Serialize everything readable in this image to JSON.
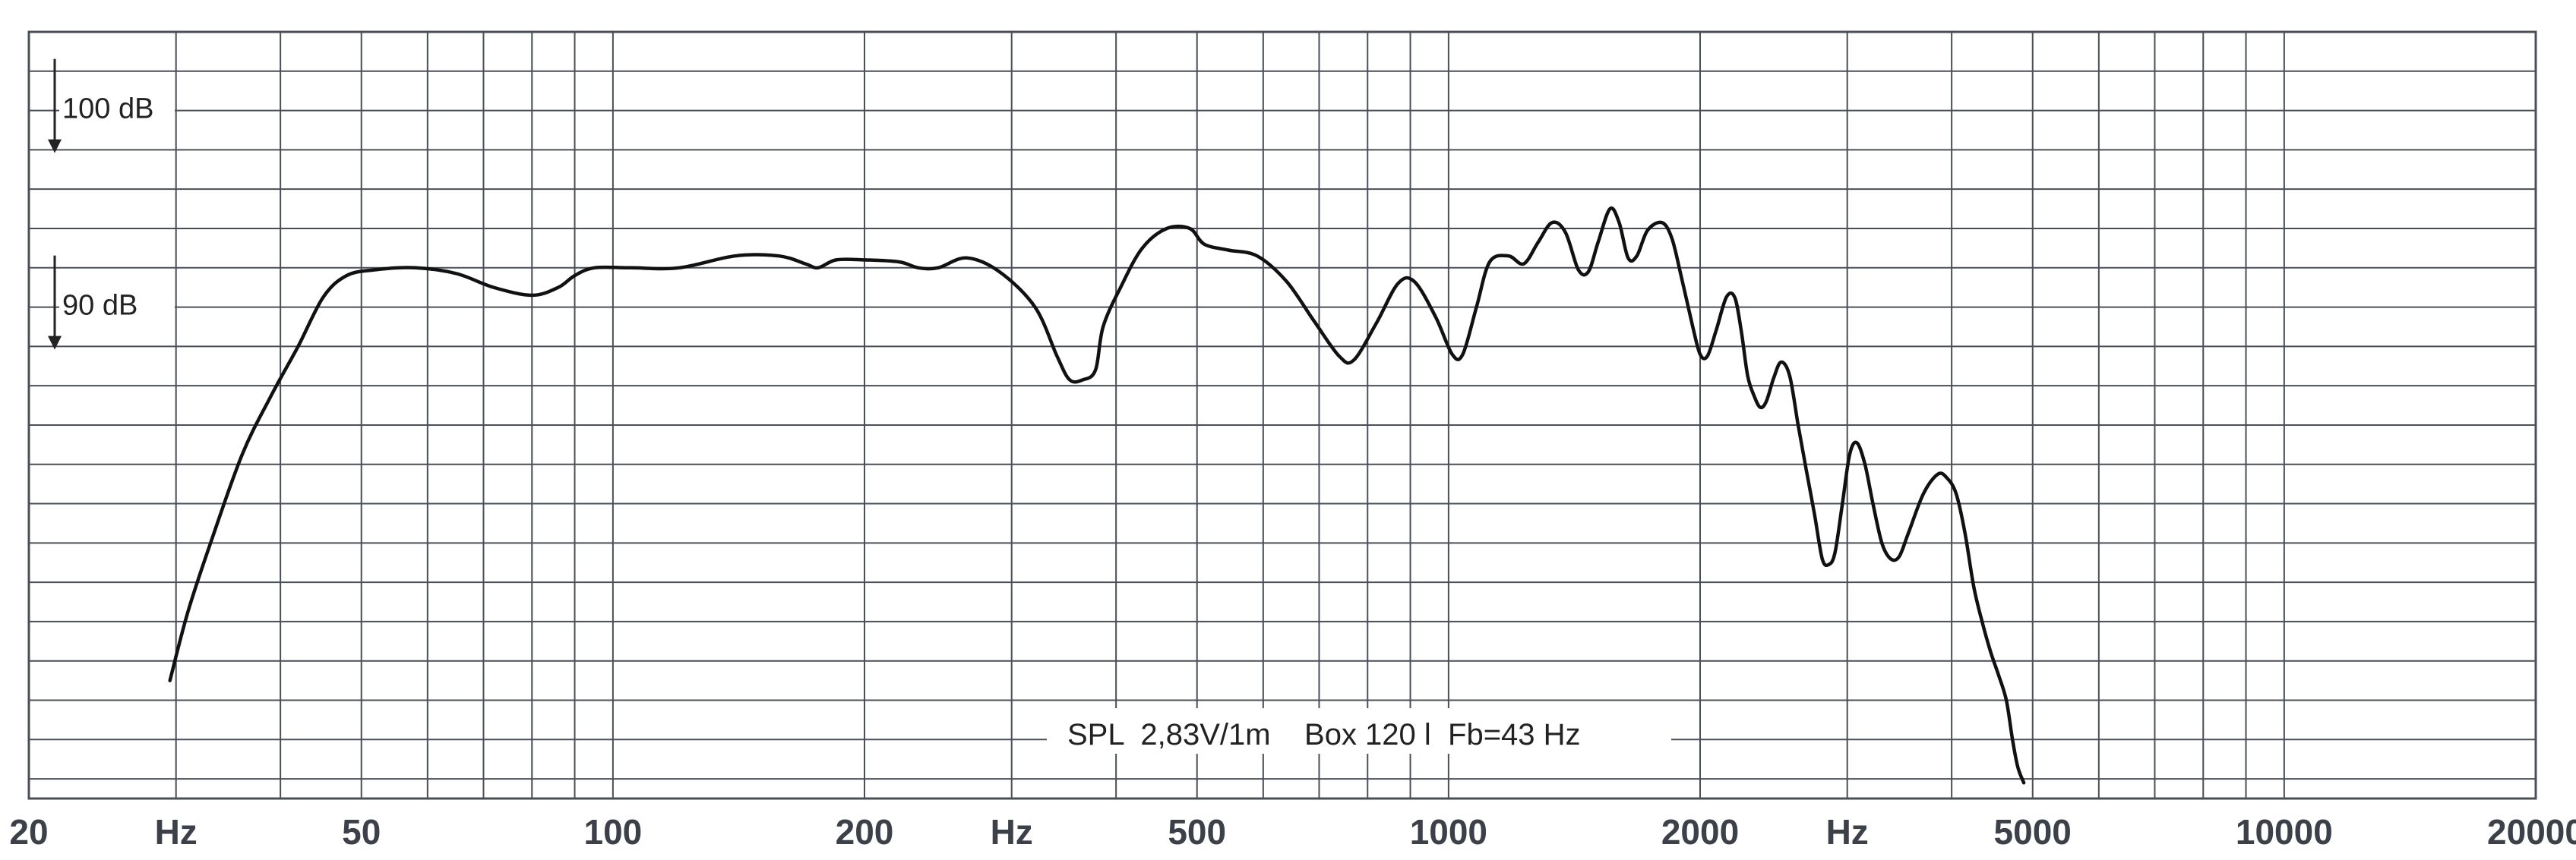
{
  "colors": {
    "grid": "#4a4f57",
    "curve": "#111111",
    "background": "#ffffff",
    "labels": "#3c4049"
  },
  "chart_data": {
    "type": "line",
    "x_scale": "log",
    "xlim": [
      20,
      20000
    ],
    "ylim": [
      65,
      104
    ],
    "grid": true,
    "tick_labels": [
      {
        "x": 20,
        "label": "20"
      },
      {
        "x": 30,
        "label": "Hz"
      },
      {
        "x": 50,
        "label": "50"
      },
      {
        "x": 100,
        "label": "100"
      },
      {
        "x": 200,
        "label": "200"
      },
      {
        "x": 300,
        "label": "Hz"
      },
      {
        "x": 500,
        "label": "500"
      },
      {
        "x": 1000,
        "label": "1000"
      },
      {
        "x": 2000,
        "label": "2000"
      },
      {
        "x": 3000,
        "label": "Hz"
      },
      {
        "x": 5000,
        "label": "5000"
      },
      {
        "x": 10000,
        "label": "10000"
      },
      {
        "x": 20000,
        "label": "20000"
      }
    ],
    "level_markers": [
      {
        "label": "100 dB",
        "value": 100
      },
      {
        "label": "90 dB",
        "value": 90
      }
    ],
    "annotation": "SPL  2,83V/1m    Box 120 l  Fb=43 Hz",
    "series": [
      {
        "points": [
          [
            29.5,
            71.0
          ],
          [
            31,
            74.5
          ],
          [
            33,
            78.0
          ],
          [
            36,
            82.5
          ],
          [
            39,
            85.5
          ],
          [
            42,
            88.0
          ],
          [
            45,
            90.5
          ],
          [
            48,
            91.6
          ],
          [
            52,
            91.9
          ],
          [
            58,
            92.0
          ],
          [
            65,
            91.7
          ],
          [
            72,
            91.0
          ],
          [
            80,
            90.6
          ],
          [
            86,
            91.0
          ],
          [
            90,
            91.6
          ],
          [
            95,
            92.0
          ],
          [
            105,
            92.0
          ],
          [
            120,
            92.0
          ],
          [
            140,
            92.6
          ],
          [
            158,
            92.6
          ],
          [
            170,
            92.2
          ],
          [
            176,
            92.0
          ],
          [
            185,
            92.4
          ],
          [
            200,
            92.4
          ],
          [
            220,
            92.3
          ],
          [
            232,
            92.0
          ],
          [
            245,
            92.0
          ],
          [
            265,
            92.5
          ],
          [
            290,
            91.8
          ],
          [
            320,
            90.0
          ],
          [
            340,
            87.5
          ],
          [
            352,
            86.3
          ],
          [
            365,
            86.3
          ],
          [
            378,
            86.8
          ],
          [
            386,
            89.0
          ],
          [
            405,
            91.0
          ],
          [
            430,
            93.0
          ],
          [
            460,
            94.0
          ],
          [
            490,
            94.0
          ],
          [
            510,
            93.2
          ],
          [
            545,
            92.9
          ],
          [
            590,
            92.6
          ],
          [
            640,
            91.3
          ],
          [
            690,
            89.3
          ],
          [
            740,
            87.5
          ],
          [
            770,
            87.3
          ],
          [
            820,
            89.2
          ],
          [
            870,
            91.2
          ],
          [
            910,
            91.3
          ],
          [
            965,
            89.5
          ],
          [
            1010,
            87.6
          ],
          [
            1040,
            87.6
          ],
          [
            1080,
            90.0
          ],
          [
            1120,
            92.3
          ],
          [
            1180,
            92.6
          ],
          [
            1230,
            92.2
          ],
          [
            1280,
            93.3
          ],
          [
            1330,
            94.3
          ],
          [
            1380,
            93.8
          ],
          [
            1430,
            91.9
          ],
          [
            1470,
            91.8
          ],
          [
            1510,
            93.3
          ],
          [
            1560,
            95.0
          ],
          [
            1600,
            94.3
          ],
          [
            1640,
            92.5
          ],
          [
            1680,
            92.6
          ],
          [
            1730,
            93.9
          ],
          [
            1800,
            94.3
          ],
          [
            1850,
            93.5
          ],
          [
            1900,
            91.5
          ],
          [
            1960,
            89.0
          ],
          [
            2000,
            87.6
          ],
          [
            2040,
            87.5
          ],
          [
            2090,
            88.8
          ],
          [
            2150,
            90.5
          ],
          [
            2200,
            90.5
          ],
          [
            2240,
            88.8
          ],
          [
            2280,
            86.5
          ],
          [
            2320,
            85.5
          ],
          [
            2360,
            84.9
          ],
          [
            2400,
            85.2
          ],
          [
            2450,
            86.4
          ],
          [
            2500,
            87.2
          ],
          [
            2560,
            86.5
          ],
          [
            2620,
            84.0
          ],
          [
            2680,
            81.7
          ],
          [
            2740,
            79.5
          ],
          [
            2800,
            77.2
          ],
          [
            2850,
            76.9
          ],
          [
            2900,
            77.5
          ],
          [
            2960,
            80.0
          ],
          [
            3020,
            82.5
          ],
          [
            3080,
            83.1
          ],
          [
            3150,
            82.0
          ],
          [
            3220,
            80.0
          ],
          [
            3300,
            78.0
          ],
          [
            3380,
            77.2
          ],
          [
            3460,
            77.3
          ],
          [
            3550,
            78.5
          ],
          [
            3700,
            80.5
          ],
          [
            3850,
            81.5
          ],
          [
            3950,
            81.3
          ],
          [
            4050,
            80.5
          ],
          [
            4150,
            78.5
          ],
          [
            4250,
            75.8
          ],
          [
            4350,
            74.0
          ],
          [
            4450,
            72.5
          ],
          [
            4550,
            71.3
          ],
          [
            4650,
            70.0
          ],
          [
            4730,
            68.0
          ],
          [
            4800,
            66.6
          ],
          [
            4880,
            65.8
          ]
        ]
      }
    ]
  }
}
